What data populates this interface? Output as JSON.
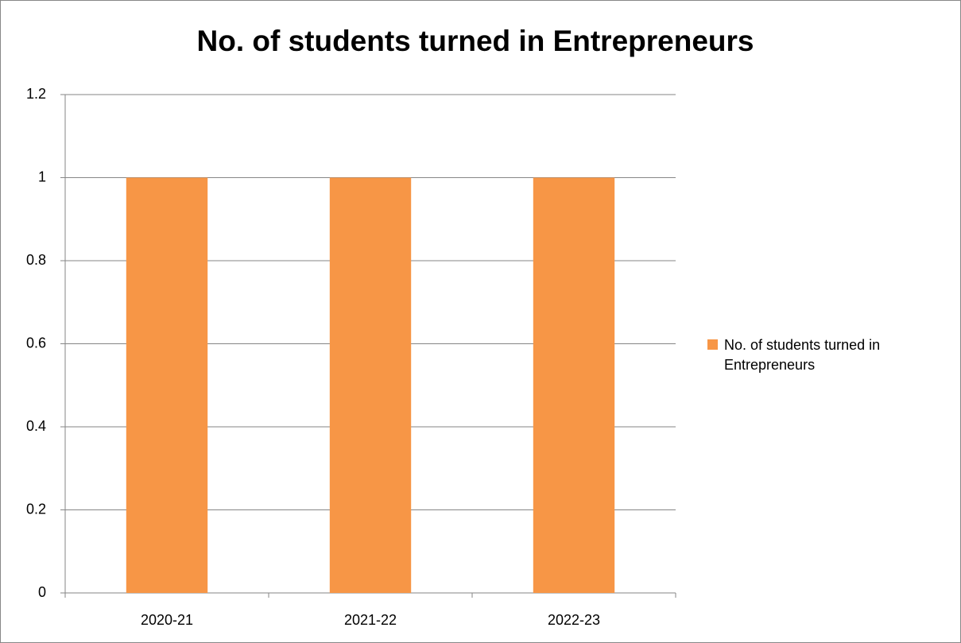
{
  "chart_data": {
    "type": "bar",
    "title": "No. of students turned in Entrepreneurs",
    "categories": [
      "2020-21",
      "2021-22",
      "2022-23"
    ],
    "series": [
      {
        "name": "No. of students turned in Entrepreneurs",
        "color": "#f79646",
        "values": [
          1,
          1,
          1
        ]
      }
    ],
    "ylim": [
      0,
      1.2
    ],
    "yticks": [
      0,
      0.2,
      0.4,
      0.6,
      0.8,
      1,
      1.2
    ],
    "grid": true,
    "legend": "right"
  }
}
